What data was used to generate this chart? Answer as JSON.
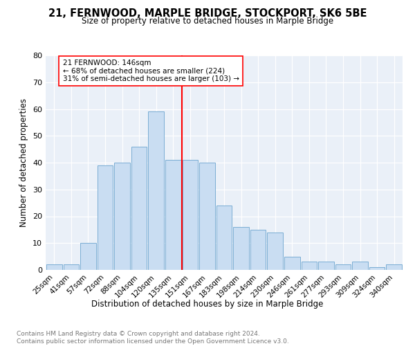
{
  "title": "21, FERNWOOD, MARPLE BRIDGE, STOCKPORT, SK6 5BE",
  "subtitle": "Size of property relative to detached houses in Marple Bridge",
  "xlabel": "Distribution of detached houses by size in Marple Bridge",
  "ylabel": "Number of detached properties",
  "bar_labels": [
    "25sqm",
    "41sqm",
    "57sqm",
    "72sqm",
    "88sqm",
    "104sqm",
    "120sqm",
    "135sqm",
    "151sqm",
    "167sqm",
    "183sqm",
    "198sqm",
    "214sqm",
    "230sqm",
    "246sqm",
    "261sqm",
    "277sqm",
    "293sqm",
    "309sqm",
    "324sqm",
    "340sqm"
  ],
  "bar_values": [
    2,
    2,
    10,
    39,
    40,
    46,
    59,
    41,
    41,
    40,
    24,
    16,
    15,
    14,
    5,
    3,
    3,
    2,
    3,
    1,
    2
  ],
  "bar_color": "#c9ddf2",
  "bar_edge_color": "#7aadd4",
  "vline_color": "red",
  "annotation_text": "21 FERNWOOD: 146sqm\n← 68% of detached houses are smaller (224)\n31% of semi-detached houses are larger (103) →",
  "annotation_box_color": "white",
  "annotation_box_edge_color": "red",
  "ylim": [
    0,
    80
  ],
  "yticks": [
    0,
    10,
    20,
    30,
    40,
    50,
    60,
    70,
    80
  ],
  "plot_bg_color": "#eaf0f8",
  "footnote": "Contains HM Land Registry data © Crown copyright and database right 2024.\nContains public sector information licensed under the Open Government Licence v3.0.",
  "title_fontsize": 10.5,
  "subtitle_fontsize": 8.5,
  "xlabel_fontsize": 8.5,
  "ylabel_fontsize": 8.5,
  "tick_fontsize": 7.5,
  "footnote_fontsize": 6.5
}
